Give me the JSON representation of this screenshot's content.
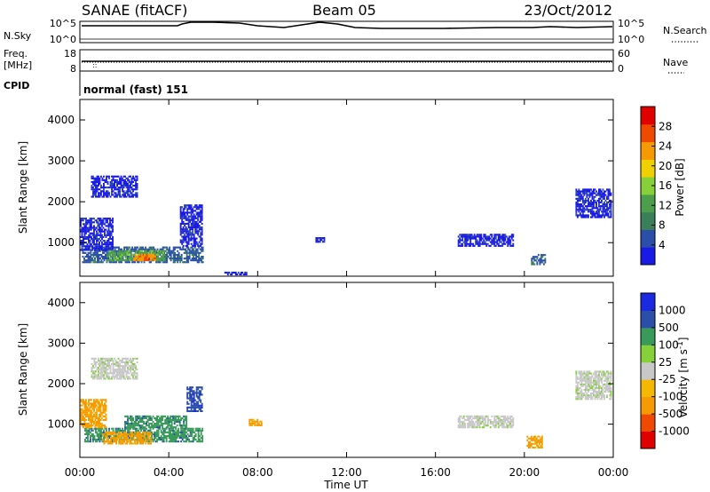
{
  "header": {
    "station": "SANAE (fitACF)",
    "beam": "Beam 05",
    "date": "23/Oct/2012"
  },
  "panels": {
    "nsky": {
      "left_label": "N.Sky",
      "left_ticks": [
        "10^5",
        "10^0"
      ],
      "right_ticks": [
        "10^5",
        "10^0"
      ],
      "right_label": "N.Search"
    },
    "freq": {
      "left_label_1": "Freq.",
      "left_label_2": "[MHz]",
      "left_ticks": [
        "18",
        "8"
      ],
      "right_ticks": [
        "60",
        "0"
      ],
      "right_label": "Nave"
    },
    "cpid": {
      "label": "CPID",
      "value": "normal (fast) 151"
    }
  },
  "colors": {
    "power_scale": [
      "#1a1ae6",
      "#2b4fa8",
      "#3a7f5a",
      "#4c9e4c",
      "#86d13a",
      "#f0d000",
      "#f59a00",
      "#f04a00",
      "#e00000"
    ],
    "velocity_scale": [
      "#e00000",
      "#f04a00",
      "#f59a00",
      "#f5b800",
      "#c8c8c8",
      "#86d13a",
      "#3a9a5a",
      "#2b4fa8",
      "#1a2ae0"
    ]
  },
  "chart_data": [
    {
      "type": "heatmap",
      "name": "power",
      "ylabel": "Slant Range [km]",
      "yticks": [
        "4000",
        "3000",
        "2000",
        "1000"
      ],
      "ylim": [
        180,
        4500
      ],
      "colorbar_label": "Power [dB]",
      "colorbar_ticks": [
        "28",
        "24",
        "20",
        "16",
        "12",
        "8",
        "4"
      ],
      "colorbar_range": [
        0,
        32
      ],
      "regions": [
        {
          "t": [
            0.1,
            5.5
          ],
          "r": [
            500,
            900
          ],
          "level": 6
        },
        {
          "t": [
            0.0,
            1.5
          ],
          "r": [
            800,
            1600
          ],
          "level": 3
        },
        {
          "t": [
            1.2,
            3.8
          ],
          "r": [
            550,
            800
          ],
          "level": 11
        },
        {
          "t": [
            2.4,
            3.4
          ],
          "r": [
            550,
            700
          ],
          "level": 22
        },
        {
          "t": [
            2.9,
            3.1
          ],
          "r": [
            580,
            640
          ],
          "level": 28
        },
        {
          "t": [
            4.5,
            5.5
          ],
          "r": [
            900,
            1900
          ],
          "level": 3
        },
        {
          "t": [
            0.5,
            2.6
          ],
          "r": [
            2100,
            2600
          ],
          "level": 2
        },
        {
          "t": [
            6.5,
            7.5
          ],
          "r": [
            200,
            260
          ],
          "level": 1
        },
        {
          "t": [
            10.6,
            11.0
          ],
          "r": [
            1000,
            1100
          ],
          "level": 2
        },
        {
          "t": [
            17.0,
            19.5
          ],
          "r": [
            900,
            1200
          ],
          "level": 2
        },
        {
          "t": [
            20.3,
            20.9
          ],
          "r": [
            450,
            700
          ],
          "level": 7
        },
        {
          "t": [
            22.3,
            23.9
          ],
          "r": [
            1600,
            2300
          ],
          "level": 2
        }
      ]
    },
    {
      "type": "heatmap",
      "name": "velocity",
      "ylabel": "Slant Range [km]",
      "yticks": [
        "4000",
        "3000",
        "2000",
        "1000"
      ],
      "ylim": [
        180,
        4500
      ],
      "xlabel": "Time UT",
      "xticks": [
        "00:00",
        "04:00",
        "08:00",
        "12:00",
        "16:00",
        "20:00",
        "00:00"
      ],
      "xlim": [
        0,
        24
      ],
      "colorbar_label": "Velocity [m s^-1]",
      "colorbar_ticks": [
        "1000",
        "500",
        "100",
        "25",
        "-25",
        "-100",
        "-500",
        "-1000"
      ],
      "regions": [
        {
          "t": [
            0.2,
            5.5
          ],
          "r": [
            550,
            900
          ],
          "level": "100"
        },
        {
          "t": [
            0.0,
            1.2
          ],
          "r": [
            900,
            1600
          ],
          "level": "-100"
        },
        {
          "t": [
            1.0,
            3.2
          ],
          "r": [
            500,
            800
          ],
          "level": "-100"
        },
        {
          "t": [
            2.0,
            4.8
          ],
          "r": [
            900,
            1200
          ],
          "level": "100"
        },
        {
          "t": [
            4.8,
            5.5
          ],
          "r": [
            1300,
            1900
          ],
          "level": "500"
        },
        {
          "t": [
            0.5,
            2.6
          ],
          "r": [
            2100,
            2600
          ],
          "level": "25"
        },
        {
          "t": [
            7.6,
            8.2
          ],
          "r": [
            950,
            1100
          ],
          "level": "-100"
        },
        {
          "t": [
            17.0,
            19.5
          ],
          "r": [
            900,
            1200
          ],
          "level": "25"
        },
        {
          "t": [
            20.1,
            20.8
          ],
          "r": [
            400,
            700
          ],
          "level": "-100"
        },
        {
          "t": [
            22.3,
            23.9
          ],
          "r": [
            1600,
            2300
          ],
          "level": "25"
        }
      ]
    }
  ]
}
